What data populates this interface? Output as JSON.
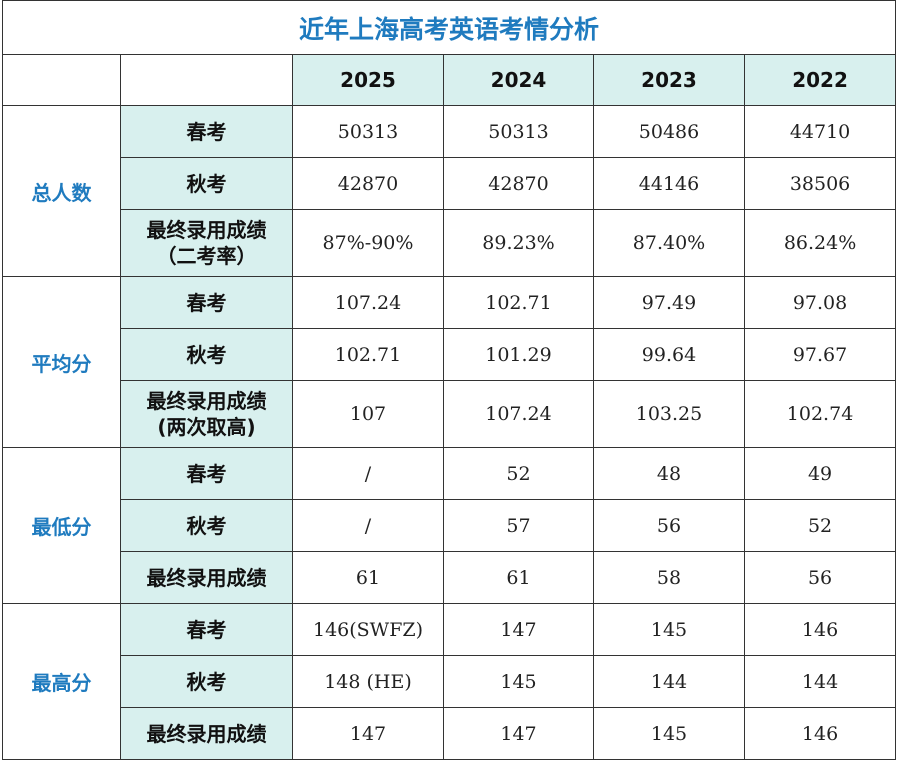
{
  "title": "近年上海高考英语考情分析",
  "years": [
    "2025",
    "2024",
    "2023",
    "2022"
  ],
  "groups": [
    {
      "name": "总人数",
      "rows": [
        {
          "label": [
            "春考"
          ],
          "values": [
            "50313",
            "50313",
            "50486",
            "44710"
          ]
        },
        {
          "label": [
            "秋考"
          ],
          "values": [
            "42870",
            "42870",
            "44146",
            "38506"
          ]
        },
        {
          "label": [
            "最终录用成绩",
            "（二考率）"
          ],
          "values": [
            "87%-90%",
            "89.23%",
            "87.40%",
            "86.24%"
          ]
        }
      ]
    },
    {
      "name": "平均分",
      "rows": [
        {
          "label": [
            "春考"
          ],
          "values": [
            "107.24",
            "102.71",
            "97.49",
            "97.08"
          ]
        },
        {
          "label": [
            "秋考"
          ],
          "values": [
            "102.71",
            "101.29",
            "99.64",
            "97.67"
          ]
        },
        {
          "label": [
            "最终录用成绩",
            "(两次取高)"
          ],
          "values": [
            "107",
            "107.24",
            "103.25",
            "102.74"
          ]
        }
      ]
    },
    {
      "name": "最低分",
      "rows": [
        {
          "label": [
            "春考"
          ],
          "values": [
            "/",
            "52",
            "48",
            "49"
          ]
        },
        {
          "label": [
            "秋考"
          ],
          "values": [
            "/",
            "57",
            "56",
            "52"
          ]
        },
        {
          "label": [
            "最终录用成绩"
          ],
          "values": [
            "61",
            "61",
            "58",
            "56"
          ]
        }
      ]
    },
    {
      "name": "最高分",
      "rows": [
        {
          "label": [
            "春考"
          ],
          "values": [
            "146(SWFZ)",
            "147",
            "145",
            "146"
          ]
        },
        {
          "label": [
            "秋考"
          ],
          "values": [
            "148 (HE)",
            "145",
            "144",
            "144"
          ]
        },
        {
          "label": [
            "最终录用成绩"
          ],
          "values": [
            "147",
            "147",
            "145",
            "146"
          ]
        }
      ]
    }
  ]
}
